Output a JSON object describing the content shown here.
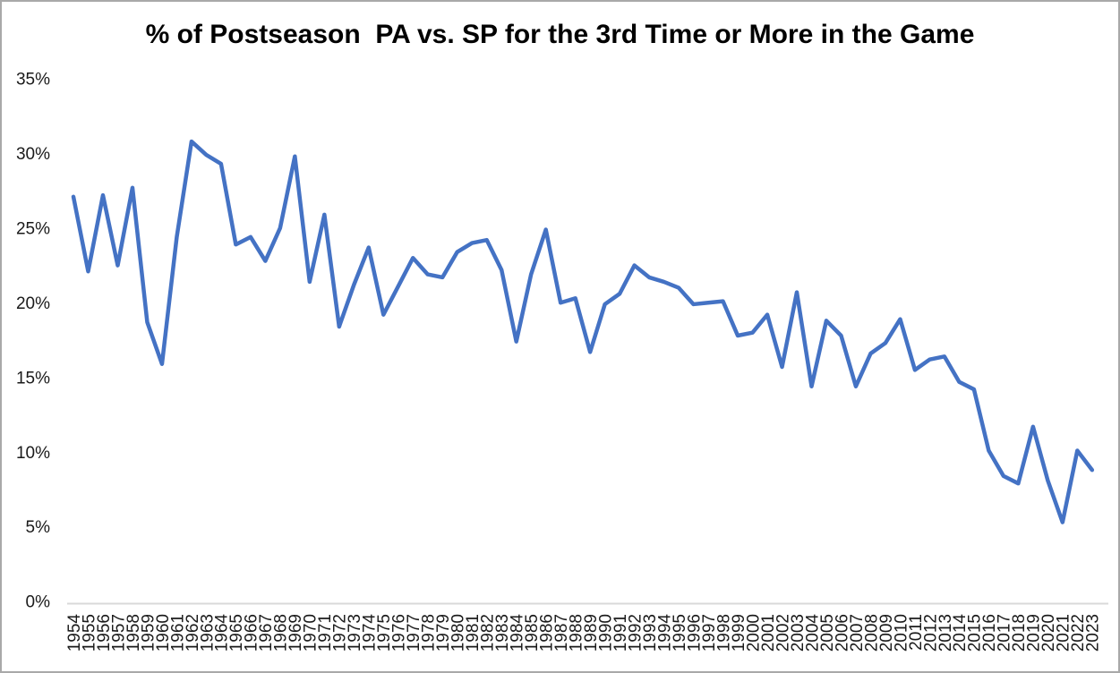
{
  "window": {
    "background": "#ffffff",
    "frame_border_color": "#a9a9a9"
  },
  "chart_data": {
    "type": "line",
    "title": "% of Postseason  PA vs. SP for the 3rd Time or More in the Game",
    "xlabel": "",
    "ylabel": "",
    "x": [
      1954,
      1955,
      1956,
      1957,
      1958,
      1959,
      1960,
      1961,
      1962,
      1963,
      1964,
      1965,
      1966,
      1967,
      1968,
      1969,
      1970,
      1971,
      1972,
      1973,
      1974,
      1975,
      1976,
      1977,
      1978,
      1979,
      1980,
      1981,
      1982,
      1983,
      1984,
      1985,
      1986,
      1987,
      1988,
      1989,
      1990,
      1991,
      1992,
      1993,
      1994,
      1995,
      1996,
      1997,
      1998,
      1999,
      2000,
      2001,
      2002,
      2003,
      2004,
      2005,
      2006,
      2007,
      2008,
      2009,
      2010,
      2011,
      2012,
      2013,
      2014,
      2015,
      2016,
      2017,
      2018,
      2019,
      2020,
      2021,
      2022,
      2023
    ],
    "series": [
      {
        "name": "% of postseason PA vs SP for the 3rd time or more",
        "color": "#4472C4",
        "values": [
          27.1,
          22.1,
          27.2,
          22.5,
          27.7,
          18.7,
          15.9,
          24.4,
          30.8,
          29.9,
          29.3,
          23.9,
          24.4,
          22.8,
          25.0,
          29.8,
          21.4,
          25.9,
          18.4,
          21.2,
          23.7,
          19.2,
          21.1,
          23.0,
          21.9,
          21.7,
          23.4,
          24.0,
          24.2,
          22.2,
          17.4,
          21.9,
          24.9,
          20.0,
          20.3,
          16.7,
          19.9,
          20.6,
          22.5,
          21.7,
          21.4,
          21.0,
          19.9,
          20.0,
          20.1,
          17.8,
          18.0,
          19.2,
          15.7,
          20.7,
          14.4,
          18.8,
          17.8,
          14.4,
          16.6,
          17.3,
          18.9,
          15.5,
          16.2,
          16.4,
          14.7,
          14.2,
          10.1,
          8.4,
          7.9,
          11.7,
          8.1,
          5.3,
          10.1,
          8.8
        ]
      }
    ],
    "ylim": [
      0,
      35
    ],
    "ytick_step": 5,
    "ytick_suffix": "%",
    "xtick_rotation_degrees": 90,
    "grid": "off",
    "legend": "none",
    "axis_line_color": "#D9D9D9",
    "tick_text_color": "#1a1a1a"
  }
}
